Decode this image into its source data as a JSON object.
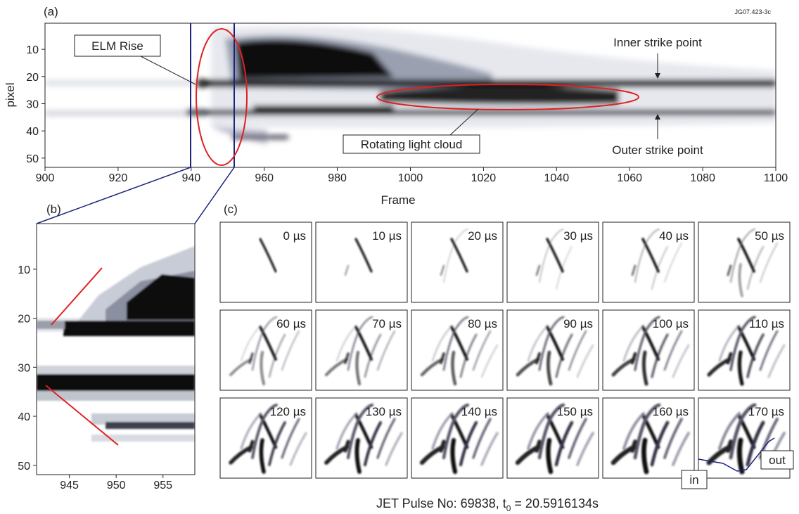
{
  "figure_id": "JG07.423-3c",
  "panel_a": {
    "label": "(a)",
    "x_label": "Frame",
    "y_label": "pixel",
    "xlim": [
      900,
      1100
    ],
    "xticks": [
      900,
      920,
      940,
      960,
      980,
      1000,
      1020,
      1040,
      1060,
      1080,
      1100
    ],
    "ylim": [
      0.4,
      53.4
    ],
    "yticks": [
      10,
      20,
      30,
      40,
      50
    ],
    "annotations": {
      "elm_rise": "ELM Rise",
      "inner": "Inner strike point",
      "outer": "Outer strike point",
      "cloud": "Rotating light cloud"
    }
  },
  "panel_b": {
    "label": "(b)",
    "xlim": [
      941.5,
      958.4
    ],
    "xticks": [
      945,
      950,
      955
    ],
    "ylim": [
      0.7,
      51.9
    ],
    "yticks": [
      10,
      20,
      30,
      40,
      50
    ]
  },
  "panel_c": {
    "label": "(c)",
    "frames": [
      "0 µs",
      "10 µs",
      "20 µs",
      "30 µs",
      "40 µs",
      "50 µs",
      "60 µs",
      "70 µs",
      "80 µs",
      "90 µs",
      "100 µs",
      "110 µs",
      "120 µs",
      "130 µs",
      "140 µs",
      "150 µs",
      "160 µs",
      "170 µs"
    ],
    "in": "in",
    "out": "out"
  },
  "caption": [
    "JET Pulse No: 69838, t",
    "0",
    " = 20.5916134s"
  ]
}
